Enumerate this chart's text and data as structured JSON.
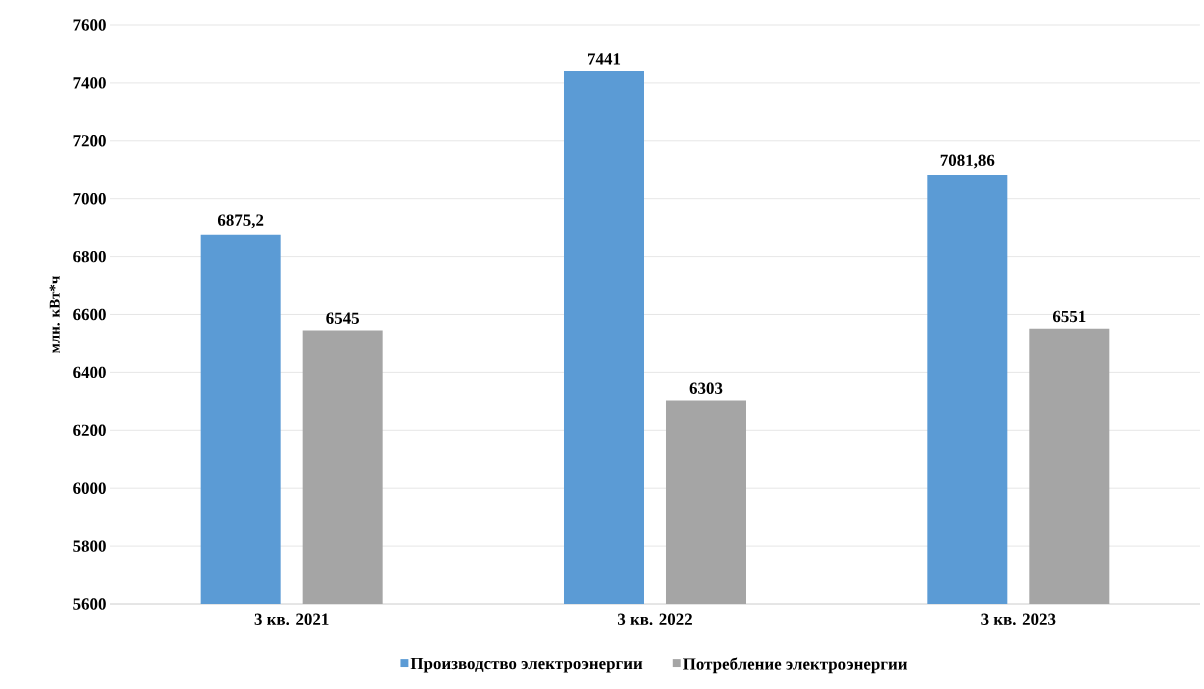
{
  "chart_data": {
    "type": "bar",
    "ylabel": "млн. кВт*ч",
    "categories": [
      "3  кв. 2021",
      "3  кв. 2022",
      "3  кв. 2023"
    ],
    "series": [
      {
        "name": "Производство электроэнергии",
        "color": "#5b9bd5",
        "values": [
          6875.2,
          7441,
          7081.86
        ],
        "value_labels": [
          "6875,2",
          "7441",
          "7081,86"
        ]
      },
      {
        "name": "Потребление электроэнергии",
        "color": "#a5a5a5",
        "values": [
          6545,
          6303,
          6551
        ],
        "value_labels": [
          "6545",
          "6303",
          "6551"
        ]
      }
    ],
    "ylim": [
      5600,
      7600
    ],
    "yticks": [
      5600,
      5800,
      6000,
      6200,
      6400,
      6600,
      6800,
      7000,
      7200,
      7400,
      7600
    ],
    "grid": "y",
    "legend": "bottom"
  }
}
